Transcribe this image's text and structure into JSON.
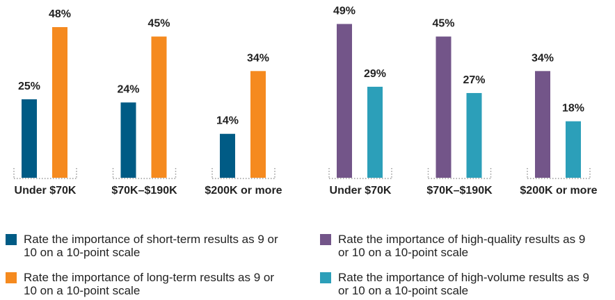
{
  "chart_data": [
    {
      "type": "bar",
      "categories": [
        "Under $70K",
        "$70K–$190K",
        "$200K or more"
      ],
      "series": [
        {
          "name": "Rate the importance of short-term results as 9 or 10 on a 10-point scale",
          "color": "#005b85",
          "values": [
            25,
            24,
            14
          ],
          "value_labels": [
            "25%",
            "24%",
            "14%"
          ]
        },
        {
          "name": "Rate the importance of long-term results as 9 or 10 on a 10-point scale",
          "color": "#f58a1f",
          "values": [
            48,
            45,
            34
          ],
          "value_labels": [
            "48%",
            "45%",
            "34%"
          ]
        }
      ]
    },
    {
      "type": "bar",
      "categories": [
        "Under $70K",
        "$70K–$190K",
        "$200K or more"
      ],
      "series": [
        {
          "name": "Rate the importance of high-quality results as 9 or 10 on a 10-point scale",
          "color": "#735589",
          "values": [
            49,
            45,
            34
          ],
          "value_labels": [
            "49%",
            "45%",
            "34%"
          ]
        },
        {
          "name": "Rate the importance of high-volume results as 9 or 10 on a 10-point scale",
          "color": "#2c9fb9",
          "values": [
            29,
            27,
            18
          ],
          "value_labels": [
            "29%",
            "27%",
            "18%"
          ]
        }
      ]
    }
  ]
}
